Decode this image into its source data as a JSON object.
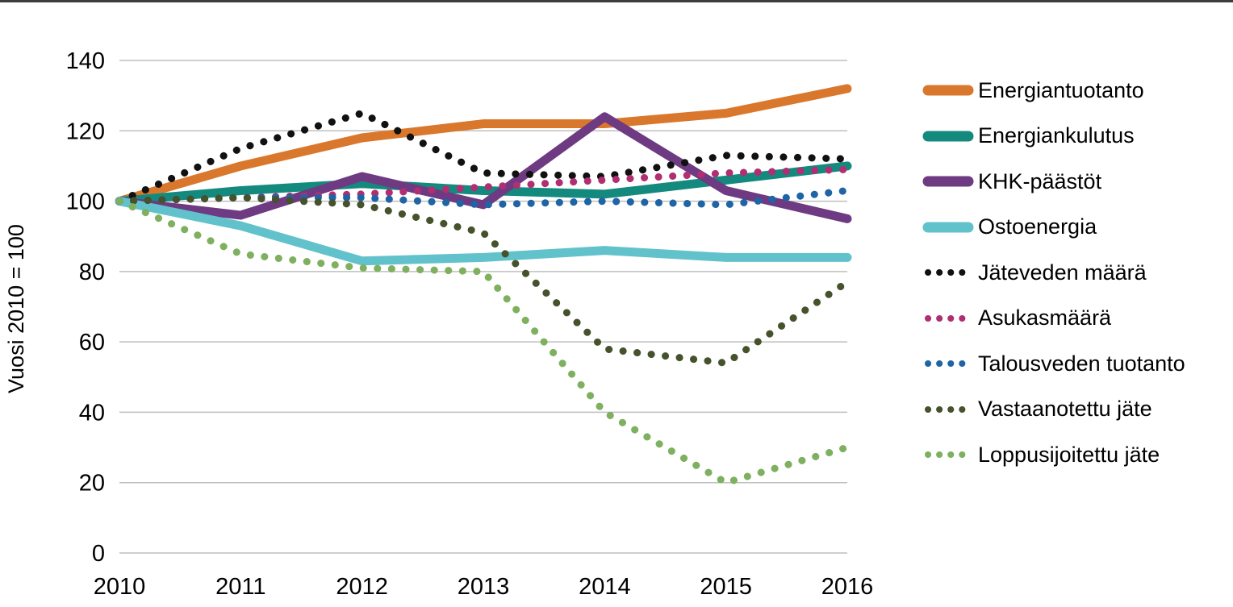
{
  "page": {
    "background": "#ffffff",
    "top_border_color": "#3d3d3d",
    "gridline_color": "#bfbfbf",
    "text_color": "#000000"
  },
  "chart_data": {
    "type": "line",
    "title": "",
    "xlabel": "",
    "ylabel": "Vuosi 2010 = 100",
    "x": [
      "2010",
      "2011",
      "2012",
      "2013",
      "2014",
      "2015",
      "2016"
    ],
    "ylim": [
      0,
      140
    ],
    "yticks": [
      0,
      20,
      40,
      60,
      80,
      100,
      120,
      140
    ],
    "grid": "horizontal",
    "legend_position": "right",
    "series": [
      {
        "name": "Energiantuotanto",
        "style": "solid",
        "color": "#d9782d",
        "values": [
          100,
          110,
          118,
          122,
          122,
          125,
          132
        ]
      },
      {
        "name": "Energiankulutus",
        "style": "solid",
        "color": "#148a7e",
        "values": [
          100,
          103,
          105,
          103,
          102,
          106,
          110
        ]
      },
      {
        "name": "KHK-päästöt",
        "style": "solid",
        "color": "#6e3a82",
        "values": [
          100,
          96,
          107,
          99,
          124,
          103,
          95
        ]
      },
      {
        "name": "Ostoenergia",
        "style": "solid",
        "color": "#62c2cc",
        "values": [
          100,
          93,
          83,
          84,
          86,
          84,
          84
        ]
      },
      {
        "name": "Jäteveden määrä",
        "style": "dotted",
        "color": "#111111",
        "values": [
          100,
          115,
          125,
          108,
          107,
          113,
          112
        ]
      },
      {
        "name": "Asukasmäärä",
        "style": "dotted",
        "color": "#b12e72",
        "values": [
          100,
          101,
          102,
          104,
          106,
          108,
          109
        ]
      },
      {
        "name": "Talousveden tuotanto",
        "style": "dotted",
        "color": "#1f64a5",
        "values": [
          100,
          101,
          101,
          99,
          100,
          99,
          103
        ]
      },
      {
        "name": "Vastaanotettu jäte",
        "style": "dotted",
        "color": "#45522c",
        "values": [
          100,
          101,
          99,
          91,
          58,
          54,
          77
        ]
      },
      {
        "name": "Loppusijoitettu jäte",
        "style": "dotted",
        "color": "#7eb05f",
        "values": [
          100,
          85,
          81,
          80,
          40,
          20,
          30
        ]
      }
    ]
  }
}
